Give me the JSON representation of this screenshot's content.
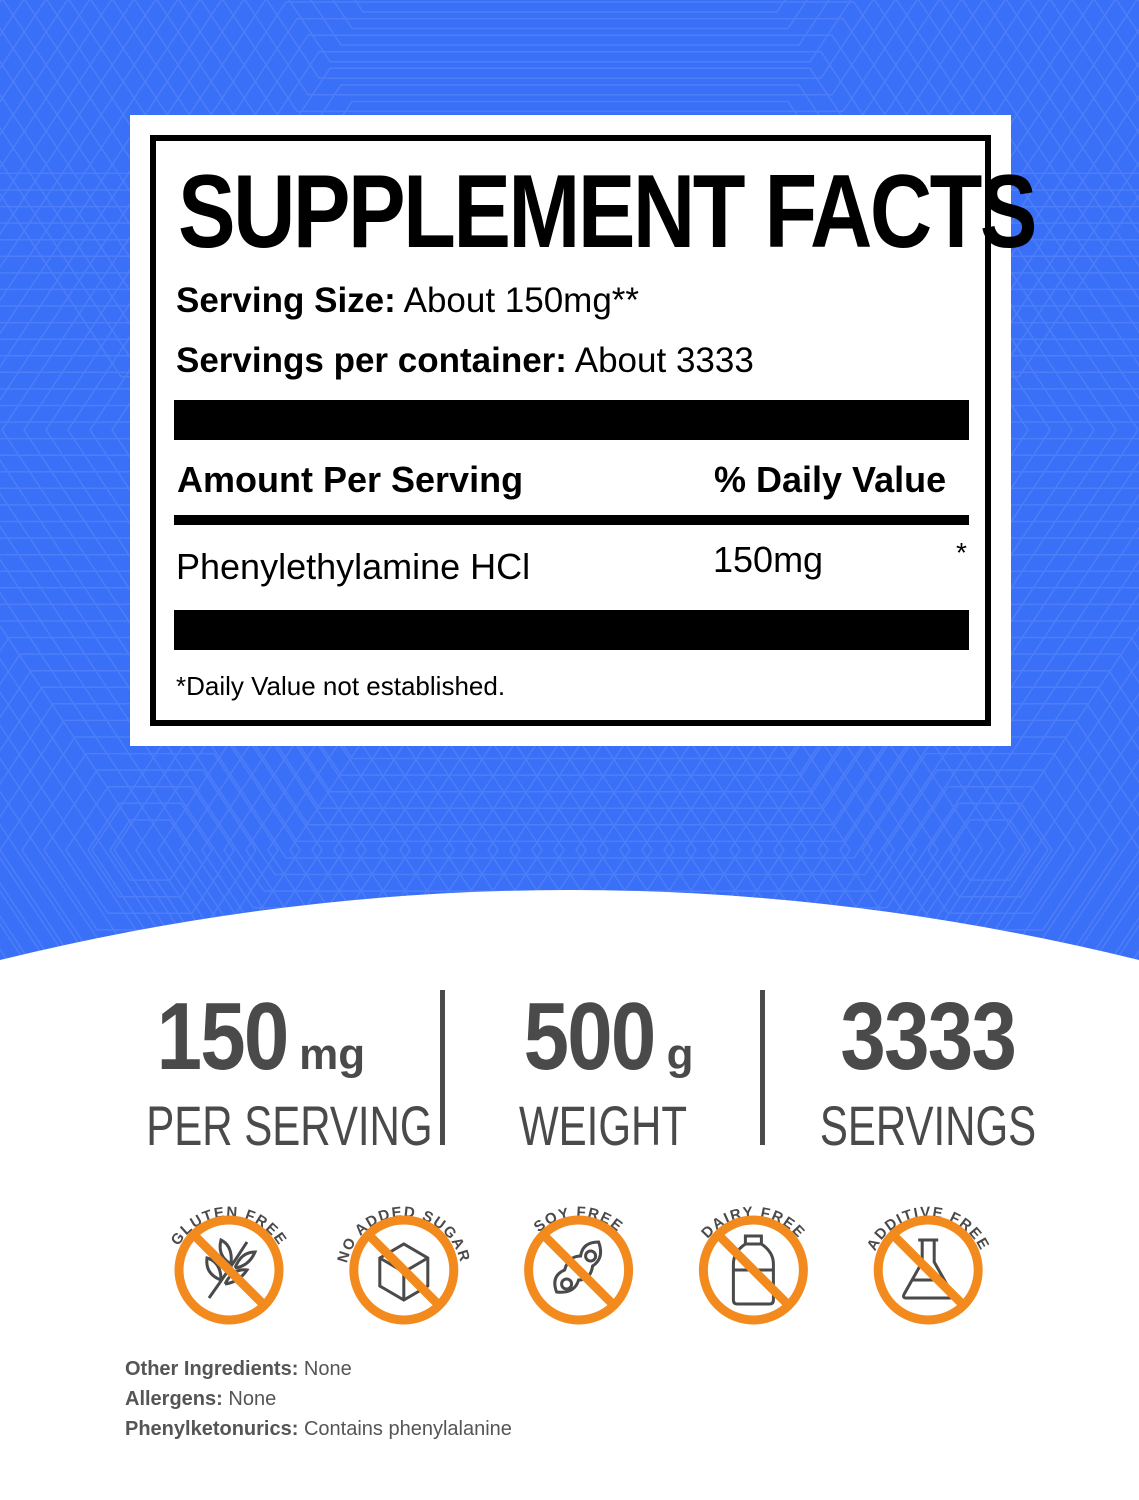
{
  "colors": {
    "background_blue": "#3a6ff7",
    "accent_orange": "#f28a1e",
    "stat_gray": "#4a4a4a"
  },
  "facts": {
    "title": "SUPPLEMENT FACTS",
    "serving_size_label": "Serving Size:",
    "serving_size_value": "About 150mg**",
    "servings_label": "Servings per container:",
    "servings_value": "About 3333",
    "amount_header": "Amount Per Serving",
    "dv_header": "% Daily Value",
    "ingredients": [
      {
        "name": "Phenylethylamine HCl",
        "amount": "150mg",
        "dv": "*"
      }
    ],
    "footnote": "*Daily Value not established."
  },
  "stats": [
    {
      "value": "150",
      "unit": "mg",
      "label": "PER SERVING"
    },
    {
      "value": "500",
      "unit": "g",
      "label": "WEIGHT"
    },
    {
      "value": "3333",
      "unit": "",
      "label": "SERVINGS"
    }
  ],
  "badges": [
    {
      "label": "GLUTEN FREE",
      "icon": "wheat-icon"
    },
    {
      "label": "NO ADDED SUGAR",
      "icon": "sugar-cube-icon"
    },
    {
      "label": "SOY FREE",
      "icon": "soybean-icon"
    },
    {
      "label": "DAIRY FREE",
      "icon": "milk-bottle-icon"
    },
    {
      "label": "ADDITIVE FREE",
      "icon": "flask-icon"
    }
  ],
  "info": [
    {
      "label": "Other Ingredients:",
      "value": "None"
    },
    {
      "label": "Allergens:",
      "value": "None"
    },
    {
      "label": "Phenylketonurics:",
      "value": "Contains phenylalanine"
    }
  ]
}
